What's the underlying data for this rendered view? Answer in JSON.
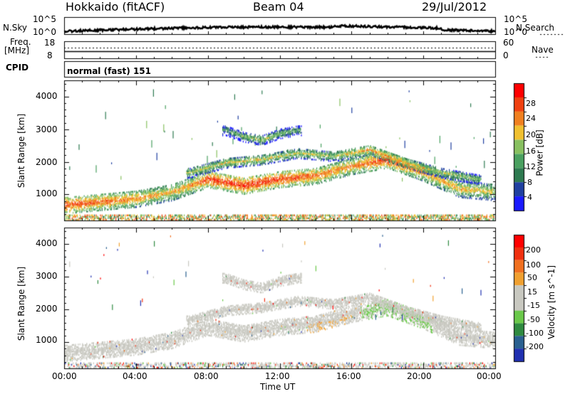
{
  "header": {
    "station": "Hokkaido (fitACF)",
    "beam": "Beam 04",
    "date": "29/Jul/2012"
  },
  "top_panels": {
    "nsky_label": "N.Sky",
    "nsearch_label": "N.Search",
    "noise_ticks_left": [
      "10^5",
      "10^0"
    ],
    "noise_ticks_right": [
      "10^5",
      "10^0"
    ],
    "freq_label": "Freq.",
    "freq_unit": "[MHz]",
    "freq_ticks": [
      "18",
      "8"
    ],
    "nave_label": "Nave",
    "nave_ticks": [
      "60",
      "0"
    ],
    "cpid_label": "CPID",
    "cpid_value": "normal (fast) 151"
  },
  "colors": {
    "power_scale": [
      "#1a1aff",
      "#2040a0",
      "#2e7a50",
      "#4aa060",
      "#88c060",
      "#f0c030",
      "#f08020",
      "#f04010",
      "#ff0000"
    ],
    "velocity_scale": [
      "#2030b0",
      "#2a6090",
      "#2f8a40",
      "#6ac84a",
      "#c8c8c0",
      "#c8c8c0",
      "#f0a030",
      "#f07020",
      "#f03010",
      "#ff0000"
    ],
    "gray": "#c8c8c0"
  },
  "chart_data": [
    {
      "type": "heatmap",
      "panel": "power",
      "ylabel": "Slant Range [km]",
      "y_ticks": [
        "1000",
        "2000",
        "3000",
        "4000"
      ],
      "ylim": [
        200,
        4500
      ],
      "x_ticks": [
        "00:00",
        "04:00",
        "08:00",
        "12:00",
        "16:00",
        "20:00",
        "00:00"
      ],
      "colorbar_label": "Power [dB]",
      "colorbar_ticks": [
        "4",
        "8",
        "12",
        "16",
        "20",
        "24",
        "28"
      ],
      "colorbar_range": [
        0,
        30
      ],
      "echo_bands": [
        {
          "time": [
            0,
            2,
            4,
            6,
            7,
            8,
            10,
            12,
            14,
            16,
            18,
            20,
            22,
            24
          ],
          "range": [
            700,
            800,
            900,
            1100,
            1300,
            1500,
            1300,
            1500,
            1600,
            1900,
            2100,
            1700,
            1200,
            1100
          ],
          "power": [
            26,
            24,
            22,
            20,
            22,
            26,
            27,
            26,
            24,
            22,
            27,
            22,
            20,
            18
          ]
        },
        {
          "time": [
            7,
            9,
            11,
            13,
            15,
            17,
            19,
            21,
            23
          ],
          "range": [
            1700,
            2000,
            2100,
            2300,
            2200,
            2400,
            2000,
            1700,
            1500
          ],
          "power": [
            16,
            18,
            18,
            17,
            16,
            22,
            20,
            16,
            14
          ]
        },
        {
          "time": [
            9,
            10,
            11,
            12,
            13
          ],
          "range": [
            3000,
            2800,
            2700,
            2900,
            3000
          ],
          "power": [
            12,
            14,
            16,
            14,
            12
          ]
        }
      ]
    },
    {
      "type": "heatmap",
      "panel": "velocity",
      "ylabel": "Slant Range [km]",
      "y_ticks": [
        "1000",
        "2000",
        "3000",
        "4000"
      ],
      "ylim": [
        200,
        4500
      ],
      "x_ticks": [
        "00:00",
        "04:00",
        "08:00",
        "12:00",
        "16:00",
        "20:00",
        "00:00"
      ],
      "xlabel": "Time UT",
      "colorbar_label": "Velocity [m s^-1]",
      "colorbar_ticks": [
        "200",
        "100",
        "50",
        "15",
        "-15",
        "-50",
        "-100",
        "-200"
      ],
      "colorbar_range": [
        -250,
        250
      ],
      "note": "mostly ground scatter (grey) following the same range structure as the power panel, with patches of green (+50) near 17:00-20:00 and orange (-50) near 14:00-16:00"
    }
  ]
}
